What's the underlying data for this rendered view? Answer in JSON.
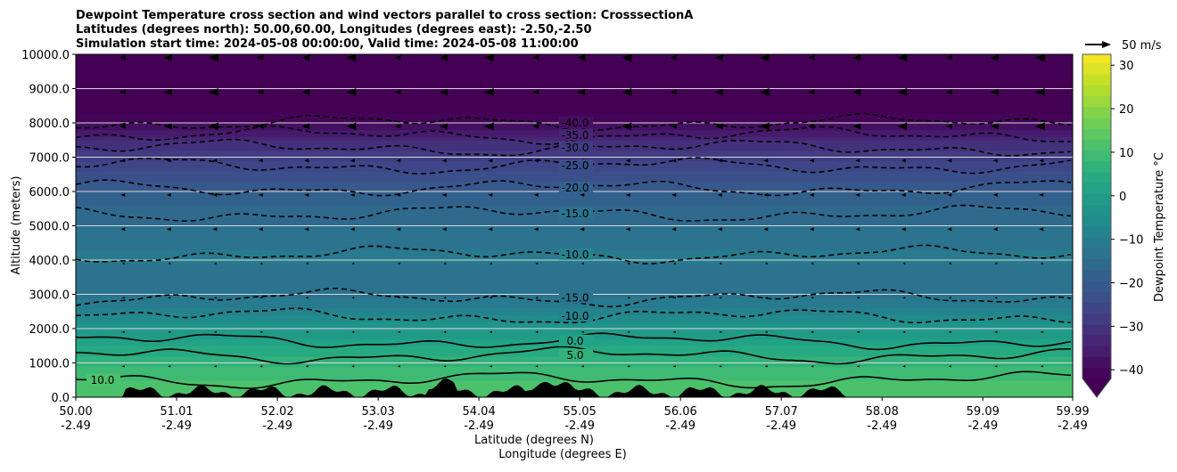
{
  "chart_data": {
    "type": "contour",
    "title_lines": [
      "Dewpoint Temperature cross section and wind vectors parallel to cross section: CrosssectionA",
      "Latitudes (degrees north): 50.00,60.00, Longitudes (degrees east): -2.50,-2.50",
      "Simulation start time: 2024-05-08 00:00:00, Valid time: 2024-05-08 11:00:00"
    ],
    "ylabel": "Altitude (meters)",
    "xlabel_lines": [
      "Latitude (degrees N)",
      "Longitude (degrees E)"
    ],
    "ylim": [
      0,
      10000
    ],
    "yticks": [
      "0.0",
      "1000.0",
      "2000.0",
      "3000.0",
      "4000.0",
      "5000.0",
      "6000.0",
      "7000.0",
      "8000.0",
      "9000.0",
      "10000.0"
    ],
    "xlim": [
      50.0,
      59.99
    ],
    "xticks": [
      {
        "lat": "50.00",
        "lon": "-2.49"
      },
      {
        "lat": "51.01",
        "lon": "-2.49"
      },
      {
        "lat": "52.02",
        "lon": "-2.49"
      },
      {
        "lat": "53.03",
        "lon": "-2.49"
      },
      {
        "lat": "54.04",
        "lon": "-2.49"
      },
      {
        "lat": "55.05",
        "lon": "-2.49"
      },
      {
        "lat": "56.06",
        "lon": "-2.49"
      },
      {
        "lat": "57.07",
        "lon": "-2.49"
      },
      {
        "lat": "58.08",
        "lon": "-2.49"
      },
      {
        "lat": "59.09",
        "lon": "-2.49"
      },
      {
        "lat": "59.99",
        "lon": "-2.49"
      }
    ],
    "dewpoint_profile_approx": {
      "altitude_m": [
        0,
        500,
        1000,
        1500,
        2000,
        2500,
        3000,
        3500,
        4000,
        4500,
        5000,
        5500,
        6000,
        6500,
        7000,
        7500,
        8000,
        8500,
        9000,
        10000
      ],
      "dewpoint_c": [
        12,
        10,
        7,
        2,
        -3,
        -9,
        -13,
        -14,
        -12,
        -13,
        -15,
        -17,
        -20,
        -24,
        -28,
        -33,
        -40,
        -44,
        -46,
        -48
      ]
    },
    "contours": [
      {
        "level": -40,
        "label": "-40.0",
        "altitude_m": 8000,
        "style": "dashed"
      },
      {
        "level": -35,
        "label": "-35.0",
        "altitude_m": 7640,
        "style": "dashed"
      },
      {
        "level": -30,
        "label": "-30.0",
        "altitude_m": 7270,
        "style": "dashed"
      },
      {
        "level": -25,
        "label": "-25.0",
        "altitude_m": 6750,
        "style": "dashed"
      },
      {
        "level": -20,
        "label": "-20.0",
        "altitude_m": 6100,
        "style": "dashed"
      },
      {
        "level": -15,
        "label": "-15.0",
        "altitude_m": 5350,
        "style": "dashed"
      },
      {
        "level": -10,
        "label": "-10.0",
        "altitude_m": 4160,
        "style": "dashed"
      },
      {
        "level": -15,
        "label": "-15.0",
        "altitude_m": 2900,
        "style": "dashed"
      },
      {
        "level": -10,
        "label": "-10.0",
        "altitude_m": 2360,
        "style": "dashed"
      },
      {
        "level": 0,
        "label": "0.0",
        "altitude_m": 1640,
        "style": "solid"
      },
      {
        "level": 5,
        "label": "5.0",
        "altitude_m": 1220,
        "style": "solid"
      },
      {
        "level": 10,
        "label": "10.0",
        "altitude_m": 500,
        "style": "solid"
      }
    ],
    "colorbar": {
      "label": "Dewpoint Temperature $^\\circ$C",
      "label_display": "Dewpoint Temperature °C",
      "range": [
        -42,
        32.5
      ],
      "ticks": [
        "30",
        "20",
        "10",
        "0",
        "−10",
        "−20",
        "−30",
        "−40"
      ],
      "tick_values": [
        30,
        20,
        10,
        0,
        -10,
        -20,
        -30,
        -40
      ],
      "extend": "min",
      "colormap": "viridis"
    },
    "quiver_key": {
      "label": "50 m/s",
      "value": 50
    },
    "wind_direction": "mostly negative (toward south), stronger aloft",
    "grid": "horizontal lines"
  }
}
